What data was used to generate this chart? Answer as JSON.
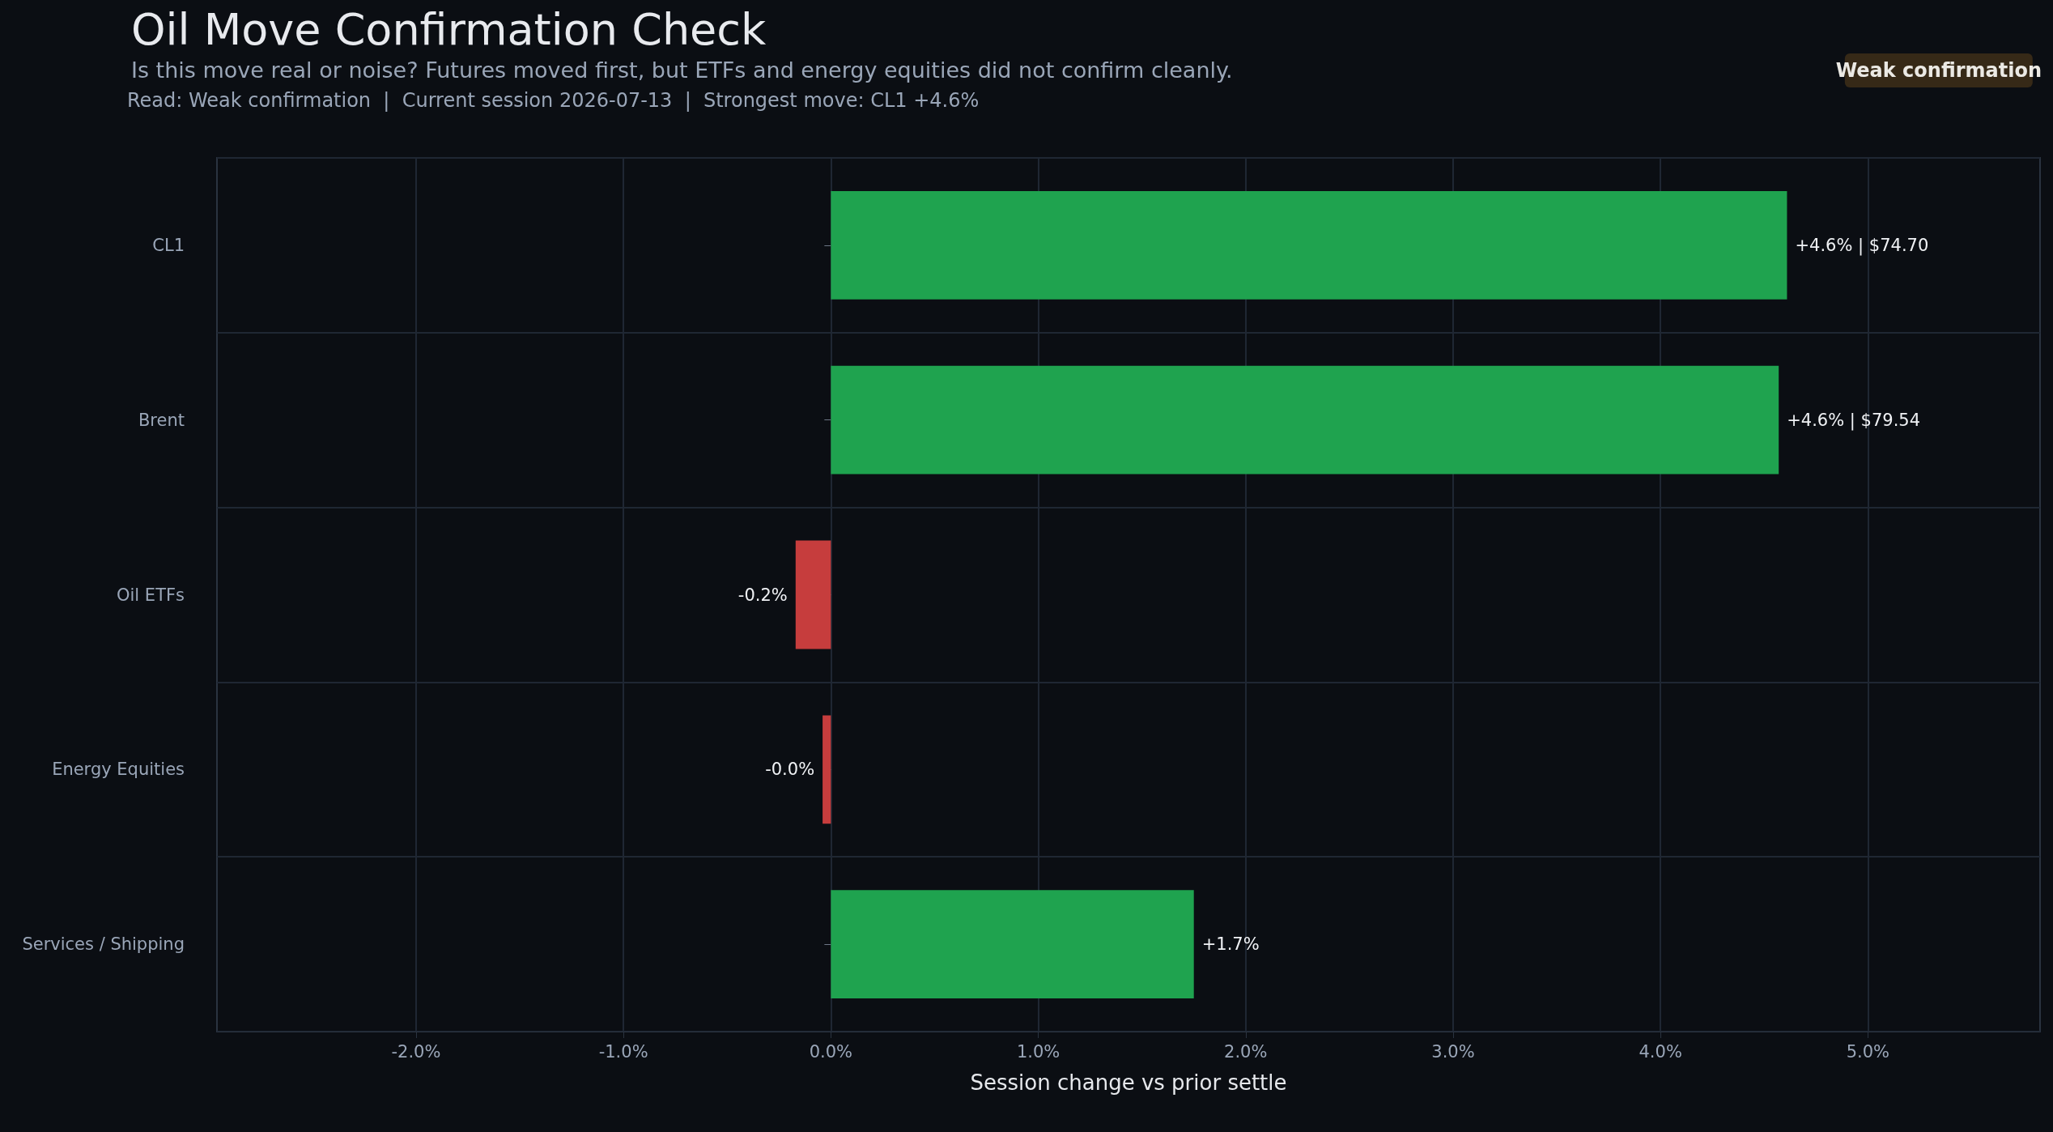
{
  "chart_data": {
    "type": "bar",
    "orientation": "horizontal",
    "title": "Oil Move Confirmation Check",
    "subtitle": "Is this move real or noise? Futures moved first, but ETFs and energy equities did not confirm cleanly.",
    "annotations": [
      "Read: Weak confirmation  |  Current session 2026-07-13  |  Strongest move: CL1 +4.6%",
      "Weak confirmation"
    ],
    "xlabel": "Session change vs prior settle",
    "categories": [
      "CL1",
      "Brent",
      "Oil ETFs",
      "Energy Equities",
      "Services / Shipping"
    ],
    "values": [
      4.61,
      4.57,
      -0.17,
      -0.04,
      1.75
    ],
    "colors": [
      "#1fa34f",
      "#1fa34f",
      "#c63d3d",
      "#c63d3d",
      "#1fa34f"
    ],
    "value_labels": [
      "+4.6% | $74.70",
      "+4.6% | $79.54",
      "-0.2%",
      "-0.0%",
      "+1.7%"
    ],
    "xlim": [
      -2.96,
      5.83
    ],
    "xticks": [
      {
        "value": -2,
        "label": "-2.0%"
      },
      {
        "value": -1,
        "label": "-1.0%"
      },
      {
        "value": 0,
        "label": "0.0%"
      },
      {
        "value": 1,
        "label": "1.0%"
      },
      {
        "value": 2,
        "label": "2.0%"
      },
      {
        "value": 3,
        "label": "3.0%"
      },
      {
        "value": 4,
        "label": "4.0%"
      },
      {
        "value": 5,
        "label": "5.0%"
      }
    ],
    "grid": true
  }
}
